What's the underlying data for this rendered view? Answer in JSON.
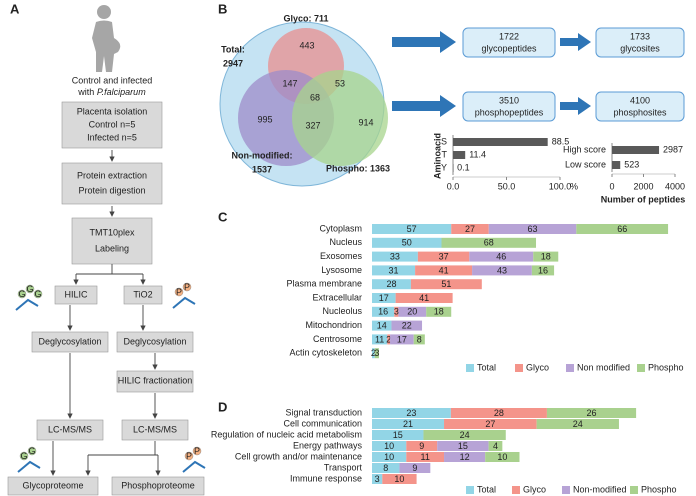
{
  "panel_a": {
    "label": "A",
    "intro": [
      "Control and infected",
      "with"
    ],
    "species": "P.falciparum",
    "placenta": [
      "Placenta isolation",
      "Control n=5",
      "Infected n=5"
    ],
    "protein": [
      "Protein extraction",
      "Protein digestion"
    ],
    "tmt": [
      "TMT10plex",
      "Labeling"
    ],
    "hilic": "HILIC",
    "tio2": "TiO2",
    "deglyco_left": "Deglycosylation",
    "deglyco_right": "Deglycosylation",
    "hilic_fractionation": "HILIC fractionation",
    "lcms_left": "LC-MS/MS",
    "lcms_right": "LC-MS/MS",
    "glycoproteome": "Glycoproteome",
    "phosphoproteome": "Phosphoproteome",
    "icon_g": "G",
    "icon_p": "P"
  },
  "panel_b": {
    "label": "B",
    "venn": {
      "glyco": "Glyco: 711",
      "total": [
        "Total:",
        "2947"
      ],
      "non_modified": [
        "Non-modified:",
        "1537"
      ],
      "phospho": "Phospho: 1363",
      "regions": {
        "glyco_only": 443,
        "glyco_non": 147,
        "glyco_phospho": 53,
        "all": 68,
        "non_only": 995,
        "non_phospho": 327,
        "phospho_only": 914
      }
    },
    "flow": [
      [
        "1722",
        "glycopeptides"
      ],
      [
        "1733",
        "glycosites"
      ],
      [
        "3510",
        "phosphopeptides"
      ],
      [
        "4100",
        "phosphosites"
      ]
    ],
    "aminoacid_chart": {
      "type": "bar",
      "axis_label": "Aminoacid",
      "unit": "%",
      "categories": [
        "S",
        "T",
        "Y"
      ],
      "values": [
        88.5,
        11.4,
        0.1
      ],
      "color": "#595959",
      "xlim": [
        0,
        100
      ],
      "xticks": [
        {
          "value": 0,
          "label": "0.0"
        },
        {
          "value": 50,
          "label": "50.0"
        },
        {
          "value": 100,
          "label": "100.0"
        }
      ]
    },
    "score_chart": {
      "type": "bar",
      "axis_label": "Number of peptides",
      "categories": [
        "High score",
        "Low score"
      ],
      "values": [
        2987,
        523
      ],
      "color": "#595959",
      "xlim": [
        0,
        4000
      ],
      "xticks": [
        0,
        2000,
        4000
      ]
    }
  },
  "panel_c": {
    "label": "C",
    "type": "stacked-bar",
    "categories": [
      "Cytoplasm",
      "Nucleus",
      "Exosomes",
      "Lysosome",
      "Plasma membrane",
      "Extracellular",
      "Nucleolus",
      "Mitochondrion",
      "Centrosome",
      "Actin cytoskeleton"
    ],
    "series": [
      {
        "name": "Total",
        "color": "#92d5e6",
        "values": [
          57,
          50,
          33,
          31,
          28,
          17,
          16,
          14,
          11,
          2
        ]
      },
      {
        "name": "Glyco",
        "color": "#f4948a",
        "values": [
          27,
          null,
          37,
          41,
          51,
          41,
          3,
          null,
          2,
          null
        ]
      },
      {
        "name": "Non modified",
        "color": "#b7a3d6",
        "values": [
          63,
          null,
          46,
          43,
          null,
          null,
          20,
          22,
          17,
          null
        ]
      },
      {
        "name": "Phospho",
        "color": "#a9d18e",
        "values": [
          66,
          68,
          18,
          16,
          null,
          null,
          18,
          null,
          8,
          3
        ]
      }
    ]
  },
  "panel_d": {
    "label": "D",
    "type": "stacked-bar",
    "categories": [
      "Signal transduction",
      "Cell communication",
      "Regulation of nucleic acid metabolism",
      "Energy pathways",
      "Cell growth and/or maintenance",
      "Transport",
      "Immune response"
    ],
    "series": [
      {
        "name": "Total",
        "color": "#92d5e6",
        "values": [
          23,
          21,
          15,
          10,
          10,
          8,
          3
        ]
      },
      {
        "name": "Glyco",
        "color": "#f4948a",
        "values": [
          28,
          27,
          null,
          9,
          11,
          null,
          10
        ]
      },
      {
        "name": "Non-modified",
        "color": "#b7a3d6",
        "values": [
          null,
          null,
          null,
          15,
          12,
          9,
          null
        ]
      },
      {
        "name": "Phospho",
        "color": "#a9d18e",
        "values": [
          26,
          24,
          24,
          4,
          10,
          null,
          null
        ]
      }
    ]
  }
}
